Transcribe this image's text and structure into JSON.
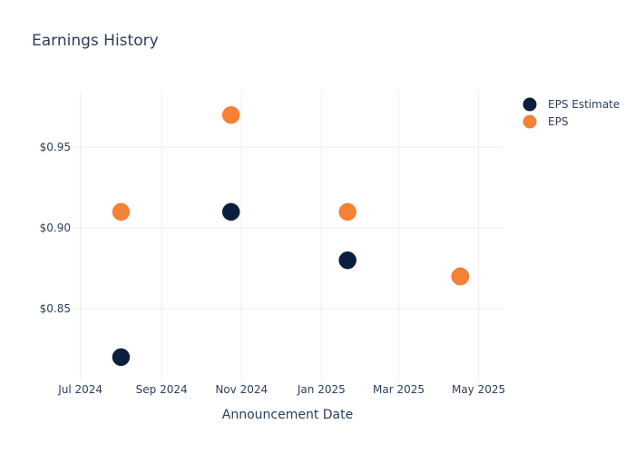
{
  "chart_data": {
    "type": "scatter",
    "title": "Earnings History",
    "xlabel": "Announcement Date",
    "ylabel": "",
    "x_axis": {
      "type": "date",
      "range": [
        "2024-06-25",
        "2025-05-20"
      ],
      "ticks": [
        {
          "date": "2024-07-01",
          "label": "Jul 2024"
        },
        {
          "date": "2024-09-01",
          "label": "Sep 2024"
        },
        {
          "date": "2024-11-01",
          "label": "Nov 2024"
        },
        {
          "date": "2025-01-01",
          "label": "Jan 2025"
        },
        {
          "date": "2025-03-01",
          "label": "Mar 2025"
        },
        {
          "date": "2025-05-01",
          "label": "May 2025"
        }
      ]
    },
    "y_axis": {
      "range": [
        0.805,
        0.985
      ],
      "ticks": [
        {
          "value": 0.85,
          "label": "$0.85"
        },
        {
          "value": 0.9,
          "label": "$0.90"
        },
        {
          "value": 0.95,
          "label": "$0.95"
        }
      ]
    },
    "grid": true,
    "legend_position": "top-right",
    "series": [
      {
        "name": "EPS Estimate",
        "color": "#0c1e3e",
        "points": [
          {
            "x": "2024-08-01",
            "y": 0.82
          },
          {
            "x": "2024-10-24",
            "y": 0.91
          },
          {
            "x": "2025-01-21",
            "y": 0.88
          },
          {
            "x": "2025-04-17",
            "y": 0.87
          }
        ]
      },
      {
        "name": "EPS",
        "color": "#f58134",
        "points": [
          {
            "x": "2024-08-01",
            "y": 0.91
          },
          {
            "x": "2024-10-24",
            "y": 0.97
          },
          {
            "x": "2025-01-21",
            "y": 0.91
          },
          {
            "x": "2025-04-17",
            "y": 0.87
          }
        ]
      }
    ]
  }
}
